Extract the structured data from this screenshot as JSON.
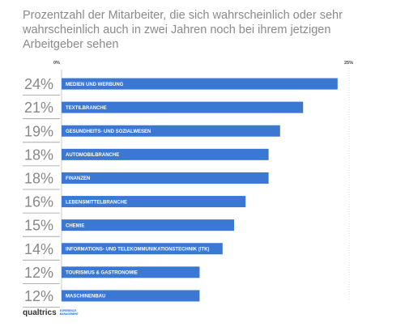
{
  "title": "Prozentzahl der Mitarbeiter, die sich wahrscheinlich oder sehr wahrscheinlich auch in zwei Jahren noch bei ihrem jetzigen Arbeitgeber sehen",
  "footer": {
    "brand": "qualtrics",
    "sub": "EXPERIENCE MANAGEMENT"
  },
  "colors": {
    "bar": "#3a78d4",
    "separator": "#9a9a9a",
    "axis": "#bbbbbb"
  },
  "chart_data": {
    "type": "bar",
    "orientation": "horizontal",
    "title": "Prozentzahl der Mitarbeiter, die sich wahrscheinlich oder sehr wahrscheinlich auch in zwei Jahren noch bei ihrem jetzigen Arbeitgeber sehen",
    "xlim": [
      0,
      25
    ],
    "tick_labels": [
      "0%",
      "25%"
    ],
    "categories": [
      "MEDIEN UND WERBUNG",
      "TEXTILBRANCHE",
      "GESUNDHEITS- UND SOZIALWESEN",
      "AUTOMOBILBRANCHE",
      "FINANZEN",
      "LEBENSMITTELBRANCHE",
      "CHEMIE",
      "INFORMATIONS- UND TELEKOMMUNIKATIONSTECHNIK (ITK)",
      "TOURISMUS & GASTRONOMIE",
      "MASCHINENBAU"
    ],
    "values": [
      24,
      21,
      19,
      18,
      18,
      16,
      15,
      14,
      12,
      12
    ],
    "value_labels": [
      "24%",
      "21%",
      "19%",
      "18%",
      "18%",
      "16%",
      "15%",
      "14%",
      "12%",
      "12%"
    ],
    "grid": false,
    "legend": "none"
  }
}
